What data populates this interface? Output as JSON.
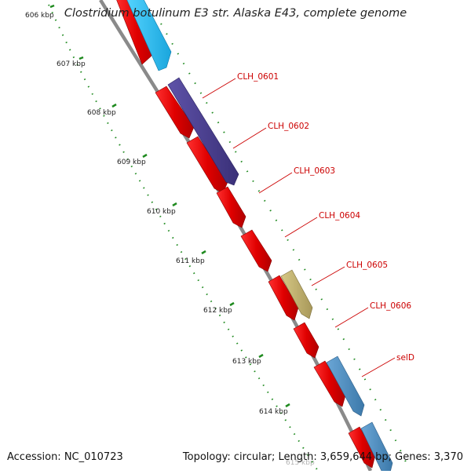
{
  "header": {
    "title": "Clostridium botulinum E3 str. Alaska E43, complete genome"
  },
  "footer": {
    "accession": "Accession: NC_010723",
    "summary": "Topology: circular; Length: 3,659,644 bp; Genes: 3,370"
  },
  "ruler": {
    "ticks": [
      "606 kbp",
      "607 kbp",
      "608 kbp",
      "609 kbp",
      "610 kbp",
      "611 kbp",
      "612 kbp",
      "613 kbp",
      "614 kbp",
      "615 kbp"
    ]
  },
  "genes": {
    "labels": [
      "CLH_0601",
      "CLH_0602",
      "CLH_0603",
      "CLH_0604",
      "CLH_0605",
      "CLH_0606",
      "selD"
    ]
  },
  "colors": {
    "cds": "#ee0000",
    "backbone": "#888888",
    "ticks": "#1f8a1f",
    "gene_label": "#cc0000",
    "feature_cyan": "#22bbee",
    "feature_purple": "#4a3f8c",
    "feature_olive": "#c2b26a",
    "feature_steelblue": "#4f8fc0"
  }
}
